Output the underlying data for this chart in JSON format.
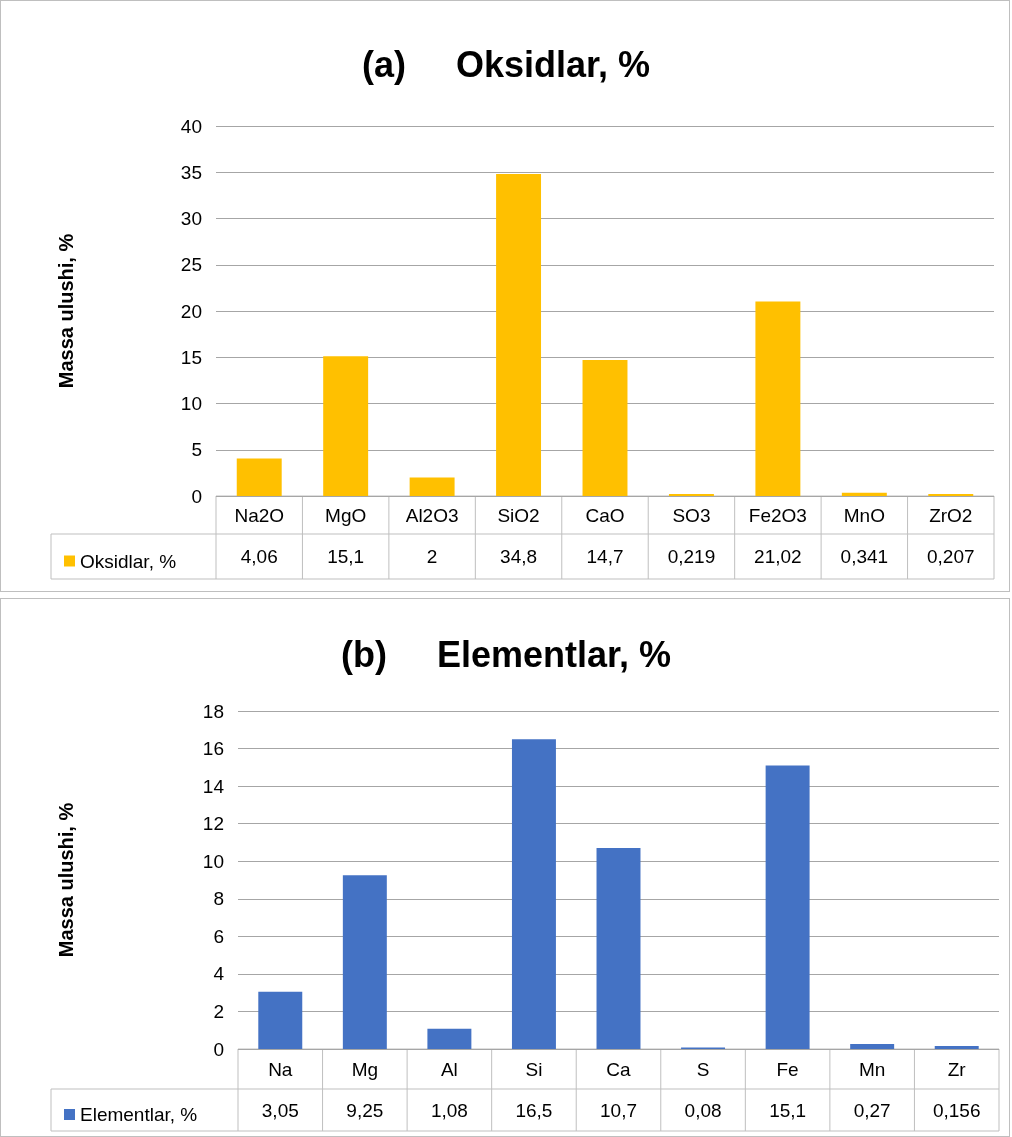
{
  "chart_data": [
    {
      "type": "bar",
      "title": "(a)     Oksidlar, %",
      "ylabel": "Massa ulushi, %",
      "categories": [
        "Na2O",
        "MgO",
        "Al2O3",
        "SiO2",
        "CaO",
        "SO3",
        "Fe2O3",
        "MnO",
        "ZrO2"
      ],
      "series": [
        {
          "name": "Oksidlar, %",
          "color": "#ffc000",
          "values": [
            4.06,
            15.1,
            2,
            34.8,
            14.7,
            0.219,
            21.02,
            0.341,
            0.207
          ],
          "value_labels": [
            "4,06",
            "15,1",
            "2",
            "34,8",
            "14,7",
            "0,219",
            "21,02",
            "0,341",
            "0,207"
          ]
        }
      ],
      "ylim": [
        0,
        40
      ],
      "yticks": [
        0,
        5,
        10,
        15,
        20,
        25,
        30,
        35,
        40
      ],
      "grid": "y",
      "legend": "bottom"
    },
    {
      "type": "bar",
      "title": "(b)     Elementlar, %",
      "ylabel": "Massa ulushi, %",
      "categories": [
        "Na",
        "Mg",
        "Al",
        "Si",
        "Ca",
        "S",
        "Fe",
        "Mn",
        "Zr"
      ],
      "series": [
        {
          "name": "Elementlar, %",
          "color": "#4472c4",
          "values": [
            3.05,
            9.25,
            1.08,
            16.5,
            10.7,
            0.08,
            15.1,
            0.27,
            0.156
          ],
          "value_labels": [
            "3,05",
            "9,25",
            "1,08",
            "16,5",
            "10,7",
            "0,08",
            "15,1",
            "0,27",
            "0,156"
          ]
        }
      ],
      "ylim": [
        0,
        18
      ],
      "yticks": [
        0,
        2,
        4,
        6,
        8,
        10,
        12,
        14,
        16,
        18
      ],
      "grid": "y",
      "legend": "bottom"
    }
  ]
}
